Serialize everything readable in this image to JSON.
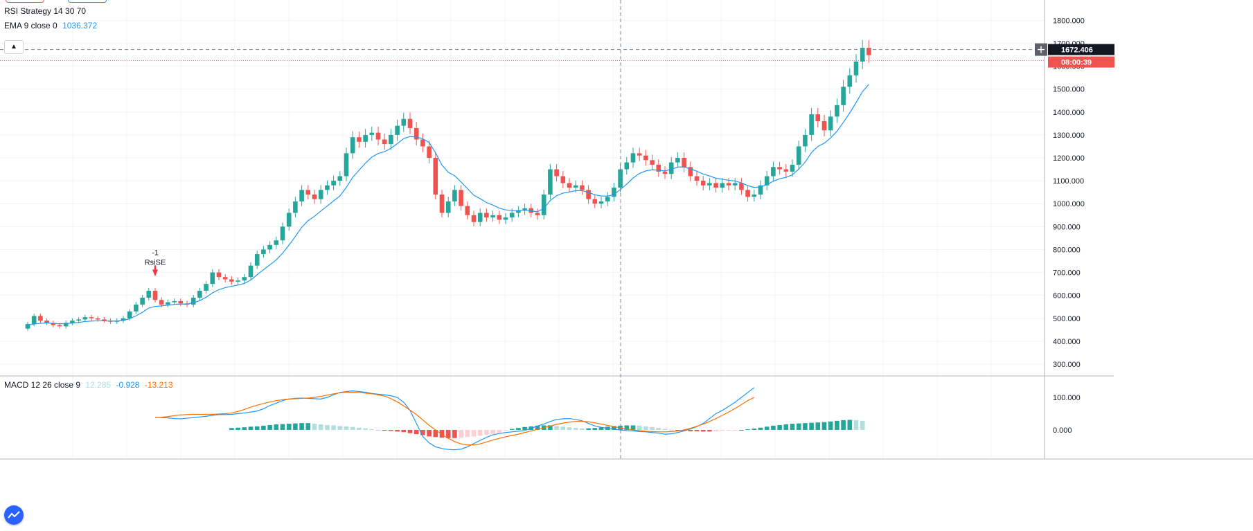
{
  "legend": {
    "strategy": "RSI Strategy 14 30 70",
    "ema_label": "EMA 9 close 0",
    "ema_value": "1036.372",
    "macd_label": "MACD 12 26 close 9",
    "macd_hist": "12.285",
    "macd_line": "-0.928",
    "macd_signal": "-13.213"
  },
  "colors": {
    "up": "#26a69a",
    "down": "#ef5350",
    "ema": "#2196f3",
    "macd": "#2196f3",
    "signal": "#ff6d00",
    "hist_up_strong": "#26a69a",
    "hist_up_weak": "#b2dfdb",
    "hist_down_strong": "#ef5350",
    "hist_down_weak": "#ffcdd2"
  },
  "icons": {
    "collapse": "chevron-up-icon",
    "crosshair": "plus-icon",
    "logo": "tradingview-logo-icon"
  },
  "chart_data": [
    {
      "type": "candlestick",
      "title": "",
      "ylim": [
        250,
        1850
      ],
      "y_ticks": [
        "300.000",
        "400.000",
        "500.000",
        "600.000",
        "700.000",
        "800.000",
        "900.000",
        "1000.000",
        "1100.000",
        "1200.000",
        "1300.000",
        "1400.000",
        "1500.000",
        "1600.000",
        "1700.000",
        "1800.000"
      ],
      "y_tick_values": [
        300,
        400,
        500,
        600,
        700,
        800,
        900,
        1000,
        1100,
        1200,
        1300,
        1400,
        1500,
        1600,
        1700,
        1800
      ],
      "grid": true,
      "price_label": "1672.406",
      "countdown_label": "08:00:39",
      "crosshair_price": 1672.4,
      "last_price": 1648,
      "signal": {
        "index": 20,
        "label_top": "-1",
        "label_bottom": "RsiSE",
        "price": 640
      },
      "series": [
        {
          "name": "price",
          "closes": [
            475,
            510,
            490,
            480,
            470,
            465,
            480,
            490,
            495,
            505,
            500,
            495,
            490,
            485,
            490,
            500,
            530,
            560,
            590,
            620,
            580,
            560,
            570,
            575,
            565,
            560,
            590,
            620,
            650,
            700,
            680,
            670,
            660,
            665,
            680,
            730,
            780,
            800,
            820,
            840,
            900,
            960,
            1010,
            1060,
            1040,
            1020,
            1060,
            1080,
            1100,
            1120,
            1220,
            1290,
            1270,
            1300,
            1310,
            1280,
            1260,
            1300,
            1340,
            1370,
            1330,
            1280,
            1250,
            1200,
            1040,
            960,
            1010,
            1060,
            990,
            950,
            920,
            960,
            940,
            950,
            930,
            940,
            960,
            970,
            980,
            960,
            950,
            1040,
            1150,
            1120,
            1090,
            1070,
            1080,
            1060,
            1020,
            1000,
            1010,
            1030,
            1070,
            1150,
            1180,
            1220,
            1210,
            1190,
            1170,
            1140,
            1130,
            1180,
            1200,
            1160,
            1120,
            1100,
            1080,
            1090,
            1070,
            1090,
            1080,
            1090,
            1060,
            1030,
            1040,
            1080,
            1120,
            1160,
            1150,
            1140,
            1170,
            1250,
            1300,
            1390,
            1360,
            1320,
            1380,
            1430,
            1510,
            1560,
            1620,
            1680,
            1648
          ],
          "ema": [
            470,
            475,
            478,
            480,
            478,
            476,
            477,
            479,
            482,
            486,
            488,
            489,
            489,
            488,
            488,
            491,
            498,
            511,
            526,
            545,
            552,
            554,
            557,
            561,
            562,
            562,
            568,
            577,
            592,
            611,
            625,
            634,
            640,
            645,
            652,
            667,
            690,
            712,
            733,
            755,
            784,
            819,
            857,
            897,
            926,
            945,
            968,
            990,
            1012,
            1034,
            1071,
            1115,
            1146,
            1177,
            1203,
            1219,
            1227,
            1242,
            1262,
            1284,
            1293,
            1291,
            1283,
            1267,
            1222,
            1169,
            1137,
            1122,
            1095,
            1066,
            1037,
            1022,
            1005,
            994,
            981,
            973,
            970,
            970,
            972,
            969,
            965,
            980,
            1014,
            1035,
            1046,
            1051,
            1057,
            1057,
            1049,
            1039,
            1034,
            1033,
            1040,
            1062,
            1085,
            1112,
            1132,
            1143,
            1148,
            1146,
            1143,
            1150,
            1160,
            1160,
            1152,
            1142,
            1129,
            1121,
            1111,
            1107,
            1102,
            1099,
            1091,
            1079,
            1071,
            1073,
            1083,
            1098,
            1109,
            1115,
            1126,
            1151,
            1181,
            1223,
            1250,
            1264,
            1287,
            1316,
            1355,
            1396,
            1441,
            1489,
            1521
          ]
        }
      ]
    },
    {
      "type": "macd",
      "title": "",
      "ylim": [
        -80,
        150
      ],
      "y_ticks": [
        "0.000",
        "100.000"
      ],
      "y_tick_values": [
        0,
        100
      ],
      "series": [
        {
          "name": "MACD",
          "start_index": 20,
          "values": [
            39,
            38,
            37,
            35,
            34,
            36,
            38,
            40,
            42,
            45,
            47,
            47,
            48,
            50,
            52,
            55,
            58,
            65,
            75,
            82,
            90,
            95,
            97,
            98,
            97,
            96,
            95,
            100,
            108,
            115,
            118,
            120,
            118,
            116,
            112,
            110,
            108,
            105,
            100,
            85,
            60,
            20,
            -20,
            -40,
            -52,
            -57,
            -60,
            -61,
            -59,
            -52,
            -42,
            -32,
            -23,
            -15,
            -11,
            -8,
            -6,
            -4,
            -2,
            5,
            12,
            18,
            26,
            32,
            34,
            35,
            32,
            28,
            20,
            12,
            8,
            5,
            2,
            0,
            -2,
            -3,
            -5,
            -6,
            -8,
            -10,
            -13,
            -12,
            -8,
            -3,
            3,
            10,
            20,
            35,
            50,
            60,
            72,
            85,
            100,
            115,
            130
          ]
        },
        {
          "name": "Signal",
          "start_index": 20,
          "values": [
            38,
            39,
            41,
            44,
            46,
            47,
            48,
            48,
            48,
            48,
            49,
            50,
            52,
            57,
            63,
            70,
            76,
            81,
            86,
            90,
            93,
            95,
            96,
            97,
            98,
            100,
            103,
            107,
            111,
            114,
            116,
            116,
            115,
            113,
            111,
            108,
            104,
            96,
            86,
            74,
            61,
            47,
            31,
            14,
            0,
            -14,
            -26,
            -36,
            -43,
            -46,
            -46,
            -43,
            -37,
            -31,
            -26,
            -21,
            -17,
            -13,
            -8,
            -3,
            2,
            7,
            12,
            17,
            21,
            24,
            26,
            26,
            25,
            22,
            18,
            14,
            10,
            6,
            3,
            0,
            -2,
            -4,
            -5,
            -6,
            -6,
            -5,
            -3,
            0,
            5,
            11,
            18,
            26,
            35,
            45,
            55,
            66,
            78,
            90,
            100
          ]
        },
        {
          "name": "Histogram",
          "start_index": 32,
          "values": [
            6,
            7,
            8,
            10,
            11,
            13,
            15,
            17,
            18,
            19,
            20,
            21,
            21,
            19,
            17,
            15,
            14,
            12,
            11,
            9,
            7,
            5,
            2,
            0,
            -2,
            -3,
            -5,
            -7,
            -10,
            -13,
            -16,
            -20,
            -22,
            -24,
            -25,
            -25,
            -24,
            -22,
            -20,
            -18,
            -15,
            -12,
            -8,
            -2,
            3,
            6,
            9,
            11,
            13,
            14,
            14,
            12,
            10,
            8,
            6,
            5,
            5,
            6,
            8,
            10,
            12,
            13,
            14,
            14,
            13,
            11,
            9,
            6,
            3,
            0,
            -2,
            -3,
            -4,
            -4,
            -5,
            -5,
            -4,
            -3,
            -2,
            -1,
            0,
            2,
            4,
            7,
            10,
            13,
            15,
            17,
            19,
            20,
            21,
            22,
            23,
            24,
            26,
            28,
            30,
            31,
            30,
            28
          ]
        }
      ]
    }
  ]
}
